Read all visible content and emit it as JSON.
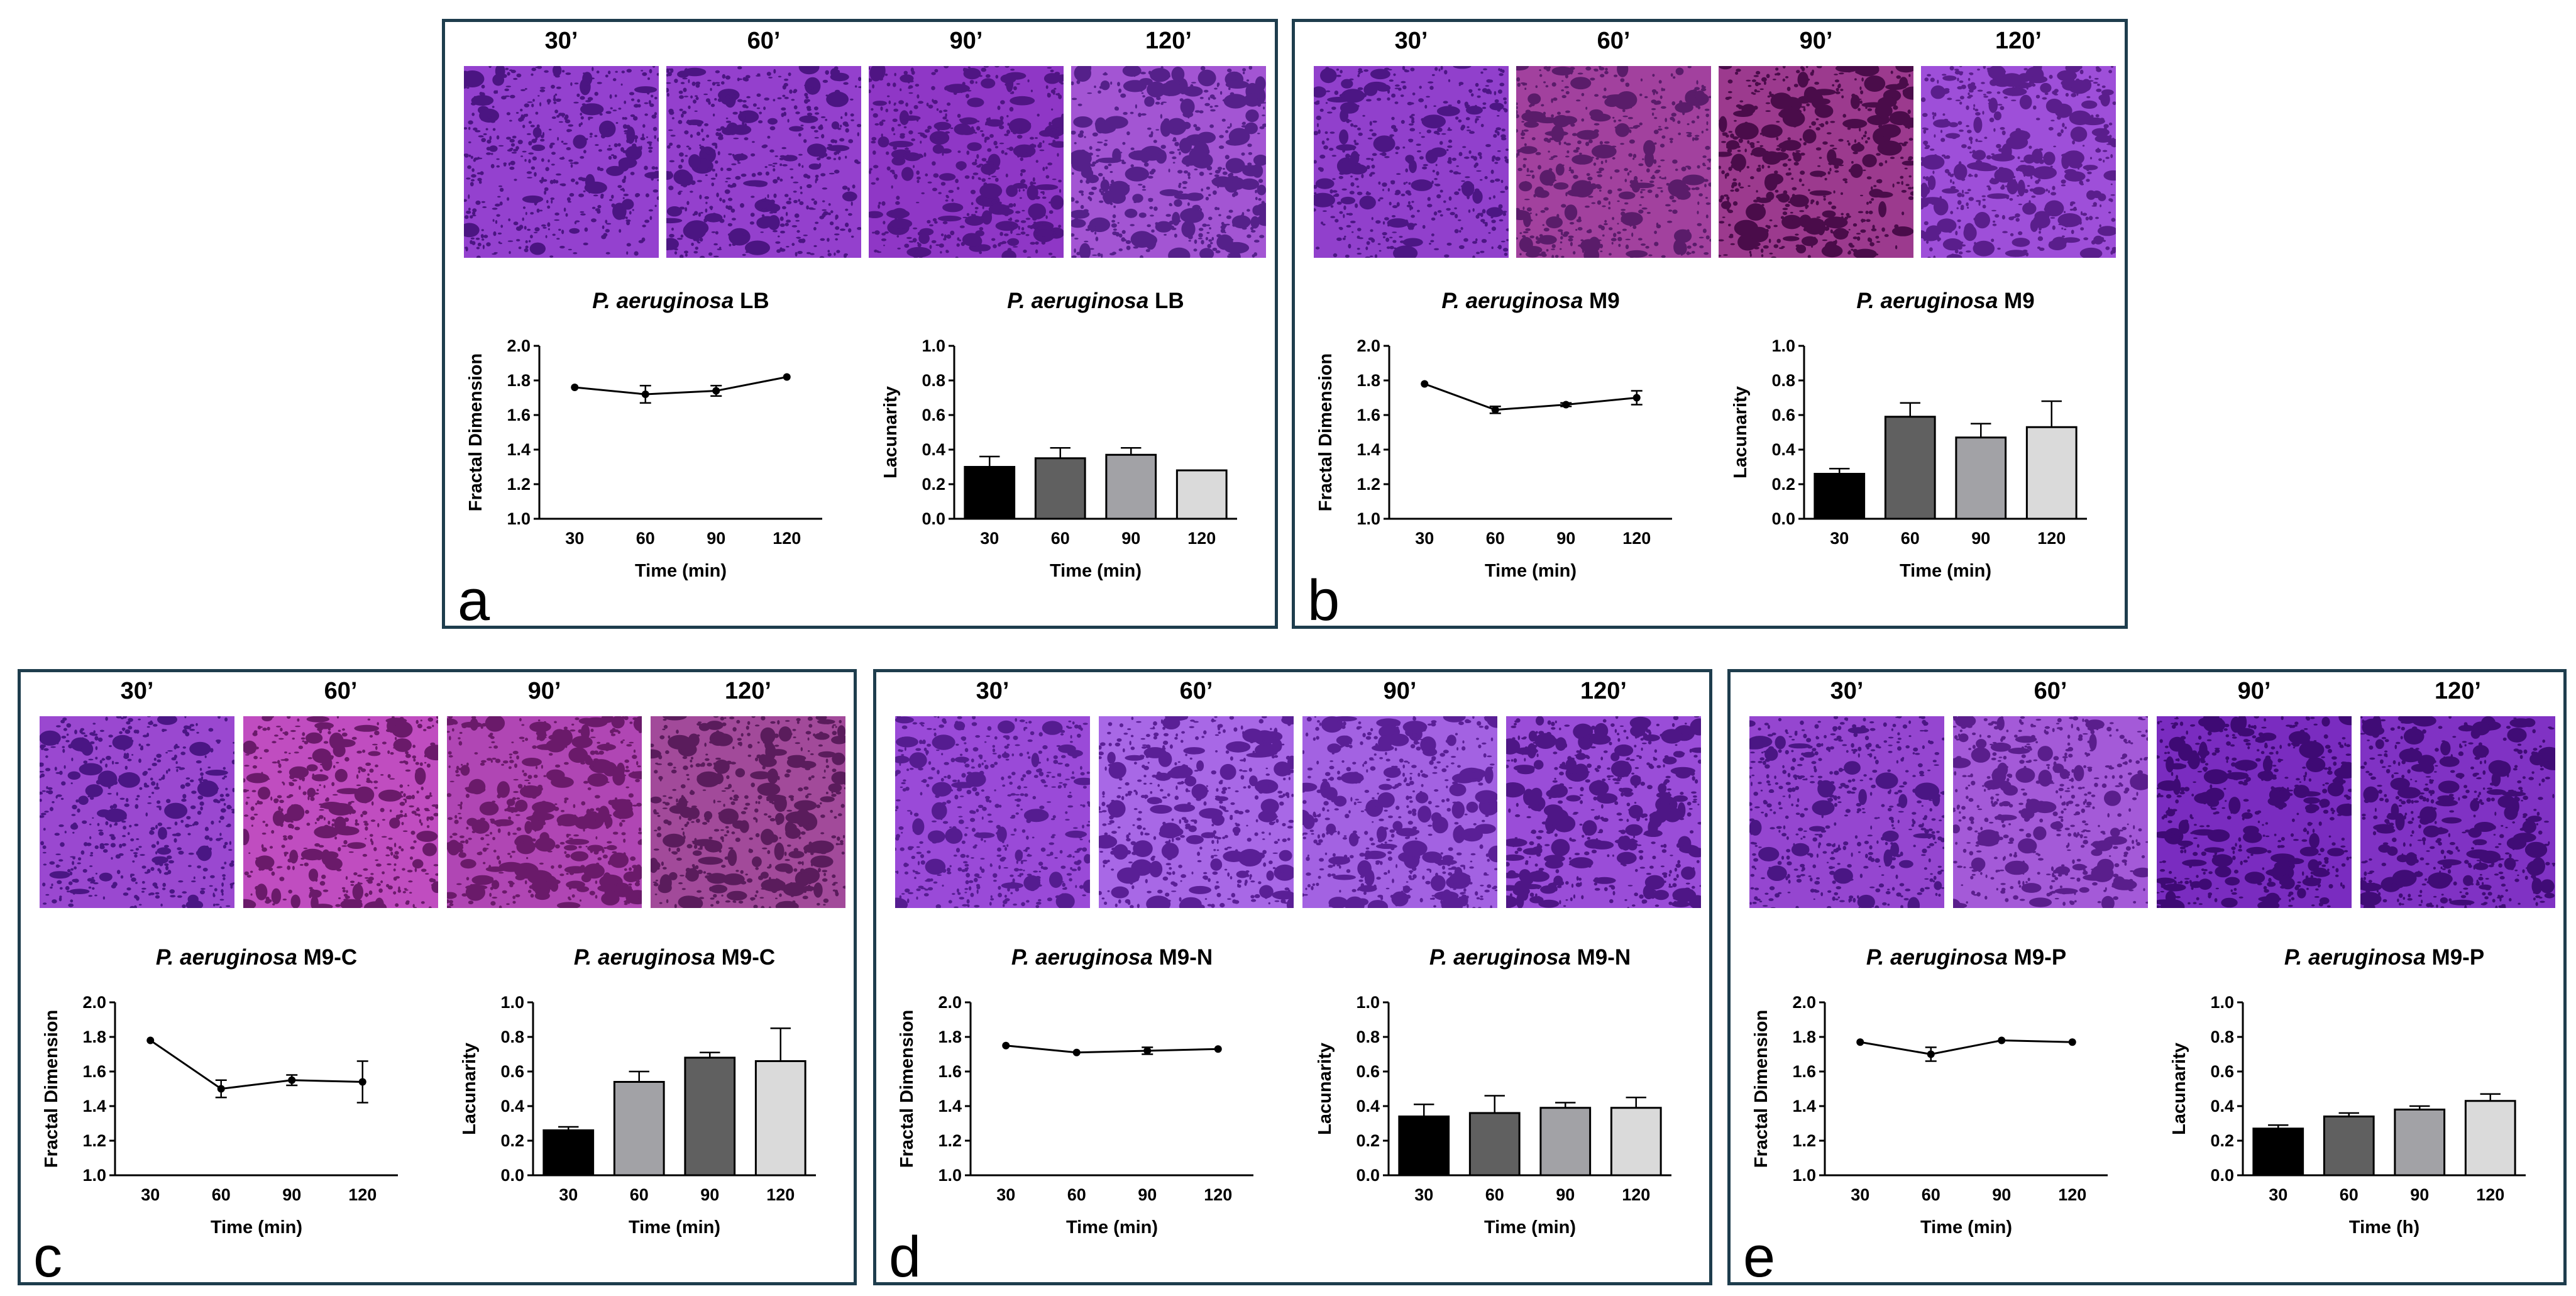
{
  "colors": {
    "frame": "#1e3d4d",
    "bar_shades": [
      "#000000",
      "#606060",
      "#a2a2a6",
      "#dadada"
    ]
  },
  "panels": [
    {
      "letter": "a",
      "timepoints": [
        "30’",
        "60’",
        "90’",
        "120’"
      ],
      "tile_colors": [
        "#9441cf",
        "#9440cd",
        "#8f37c6",
        "#a355d3"
      ],
      "tile_dot_colors": [
        "#4b1582",
        "#4b1582",
        "#4f1583",
        "#55208a"
      ],
      "chart_data": [
        {
          "type": "line",
          "title_italic": "P. aeruginosa",
          "title_rest": " LB",
          "categories": [
            "30",
            "60",
            "90",
            "120"
          ],
          "values": [
            1.76,
            1.72,
            1.74,
            1.82
          ],
          "errors": [
            0.0,
            0.05,
            0.03,
            0.0
          ],
          "xlabel": "Time (min)",
          "ylabel": "Fractal Dimension",
          "ylim": [
            1.0,
            2.0
          ],
          "yticks": [
            "1.0",
            "1.2",
            "1.4",
            "1.6",
            "1.8",
            "2.0"
          ]
        },
        {
          "type": "bar",
          "title_italic": "P. aeruginosa",
          "title_rest": " LB",
          "categories": [
            "30",
            "60",
            "90",
            "120"
          ],
          "values": [
            0.3,
            0.35,
            0.37,
            0.28
          ],
          "errors": [
            0.06,
            0.06,
            0.04,
            0.0
          ],
          "xlabel": "Time (min)",
          "ylabel": "Lacunarity",
          "ylim": [
            0.0,
            1.0
          ],
          "yticks": [
            "0.0",
            "0.2",
            "0.4",
            "0.6",
            "0.8",
            "1.0"
          ]
        }
      ]
    },
    {
      "letter": "b",
      "timepoints": [
        "30’",
        "60’",
        "90’",
        "120’"
      ],
      "tile_colors": [
        "#9140cc",
        "#a2419e",
        "#9c3a8e",
        "#9e4fd9"
      ],
      "tile_dot_colors": [
        "#4c1684",
        "#5a1c6a",
        "#4a0c4a",
        "#5a1e8c"
      ],
      "chart_data": [
        {
          "type": "line",
          "title_italic": "P. aeruginosa",
          "title_rest": " M9",
          "categories": [
            "30",
            "60",
            "90",
            "120"
          ],
          "values": [
            1.78,
            1.63,
            1.66,
            1.7
          ],
          "errors": [
            0.0,
            0.02,
            0.01,
            0.04
          ],
          "xlabel": "Time (min)",
          "ylabel": "Fractal Dimension",
          "ylim": [
            1.0,
            2.0
          ],
          "yticks": [
            "1.0",
            "1.2",
            "1.4",
            "1.6",
            "1.8",
            "2.0"
          ]
        },
        {
          "type": "bar",
          "title_italic": "P. aeruginosa",
          "title_rest": " M9",
          "categories": [
            "30",
            "60",
            "90",
            "120"
          ],
          "values": [
            0.26,
            0.59,
            0.47,
            0.53
          ],
          "errors": [
            0.03,
            0.08,
            0.08,
            0.15
          ],
          "xlabel": "Time (min)",
          "ylabel": "Lacunarity",
          "ylim": [
            0.0,
            1.0
          ],
          "yticks": [
            "0.0",
            "0.2",
            "0.4",
            "0.6",
            "0.8",
            "1.0"
          ]
        }
      ]
    },
    {
      "letter": "c",
      "timepoints": [
        "30’",
        "60’",
        "90’",
        "120’"
      ],
      "tile_colors": [
        "#9a48d0",
        "#c04dc0",
        "#b046b4",
        "#a24a9a"
      ],
      "tile_dot_colors": [
        "#4a1684",
        "#6a1a6a",
        "#6a1a6a",
        "#5a1c5c"
      ],
      "chart_data": [
        {
          "type": "line",
          "title_italic": "P. aeruginosa",
          "title_rest": " M9-C",
          "categories": [
            "30",
            "60",
            "90",
            "120"
          ],
          "values": [
            1.78,
            1.5,
            1.55,
            1.54
          ],
          "errors": [
            0.0,
            0.05,
            0.03,
            0.12
          ],
          "xlabel": "Time (min)",
          "ylabel": "Fractal Dimension",
          "ylim": [
            1.0,
            2.0
          ],
          "yticks": [
            "1.0",
            "1.2",
            "1.4",
            "1.6",
            "1.8",
            "2.0"
          ]
        },
        {
          "type": "bar",
          "title_italic": "P. aeruginosa",
          "title_rest": " M9-C",
          "categories": [
            "30",
            "60",
            "90",
            "120"
          ],
          "values": [
            0.26,
            0.54,
            0.68,
            0.66
          ],
          "errors": [
            0.02,
            0.06,
            0.03,
            0.19
          ],
          "xlabel": "Time (min)",
          "ylabel": "Lacunarity",
          "ylim": [
            0.0,
            1.0
          ],
          "yticks": [
            "0.0",
            "0.2",
            "0.4",
            "0.6",
            "0.8",
            "1.0"
          ],
          "bar_order": [
            0,
            2,
            1,
            3
          ]
        }
      ]
    },
    {
      "letter": "d",
      "timepoints": [
        "30’",
        "60’",
        "90’",
        "120’"
      ],
      "tile_colors": [
        "#9a4ad8",
        "#a868e6",
        "#a362e2",
        "#9a4dd8"
      ],
      "tile_dot_colors": [
        "#551c90",
        "#5a1f96",
        "#5a1f96",
        "#4e1686"
      ],
      "chart_data": [
        {
          "type": "line",
          "title_italic": "P. aeruginosa",
          "title_rest": " M9-N",
          "categories": [
            "30",
            "60",
            "90",
            "120"
          ],
          "values": [
            1.75,
            1.71,
            1.72,
            1.73
          ],
          "errors": [
            0.0,
            0.0,
            0.02,
            0.0
          ],
          "xlabel": "Time (min)",
          "ylabel": "Fractal Dimension",
          "ylim": [
            1.0,
            2.0
          ],
          "yticks": [
            "1.0",
            "1.2",
            "1.4",
            "1.6",
            "1.8",
            "2.0"
          ]
        },
        {
          "type": "bar",
          "title_italic": "P. aeruginosa",
          "title_rest": " M9-N",
          "categories": [
            "30",
            "60",
            "90",
            "120"
          ],
          "values": [
            0.34,
            0.36,
            0.39,
            0.39
          ],
          "errors": [
            0.07,
            0.1,
            0.03,
            0.06
          ],
          "xlabel": "Time (min)",
          "ylabel": "Lacunarity",
          "ylim": [
            0.0,
            1.0
          ],
          "yticks": [
            "0.0",
            "0.2",
            "0.4",
            "0.6",
            "0.8",
            "1.0"
          ]
        }
      ]
    },
    {
      "letter": "e",
      "timepoints": [
        "30’",
        "60’",
        "90’",
        "120’"
      ],
      "tile_colors": [
        "#9546d0",
        "#a45ad8",
        "#7a2cc0",
        "#8032c4"
      ],
      "tile_dot_colors": [
        "#4a1684",
        "#5a1e8c",
        "#3e0a74",
        "#400c76"
      ],
      "chart_data": [
        {
          "type": "line",
          "title_italic": "P. aeruginosa",
          "title_rest": " M9-P",
          "categories": [
            "30",
            "60",
            "90",
            "120"
          ],
          "values": [
            1.77,
            1.7,
            1.78,
            1.77
          ],
          "errors": [
            0.0,
            0.04,
            0.0,
            0.0
          ],
          "xlabel": "Time (min)",
          "ylabel": "Fractal Dimension",
          "ylim": [
            1.0,
            2.0
          ],
          "yticks": [
            "1.0",
            "1.2",
            "1.4",
            "1.6",
            "1.8",
            "2.0"
          ]
        },
        {
          "type": "bar",
          "title_italic": "P. aeruginosa",
          "title_rest": " M9-P",
          "categories": [
            "30",
            "60",
            "90",
            "120"
          ],
          "values": [
            0.27,
            0.34,
            0.38,
            0.43
          ],
          "errors": [
            0.02,
            0.02,
            0.02,
            0.04
          ],
          "xlabel": "Time (h)",
          "ylabel": "Lacunarity",
          "ylim": [
            0.0,
            1.0
          ],
          "yticks": [
            "0.0",
            "0.2",
            "0.4",
            "0.6",
            "0.8",
            "1.0"
          ]
        }
      ]
    }
  ]
}
